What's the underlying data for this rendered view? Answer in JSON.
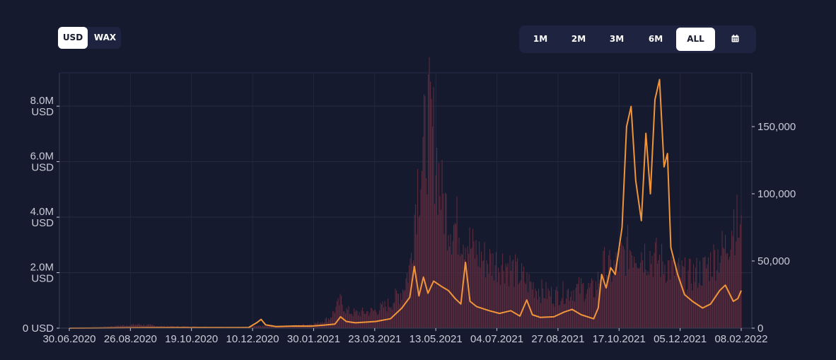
{
  "currency_toggle": {
    "options": [
      {
        "label": "USD",
        "active": true
      },
      {
        "label": "WAX",
        "active": false
      }
    ]
  },
  "range_buttons": [
    {
      "label": "1M",
      "active": false
    },
    {
      "label": "2M",
      "active": false
    },
    {
      "label": "3M",
      "active": false
    },
    {
      "label": "6M",
      "active": false
    },
    {
      "label": "ALL",
      "active": true
    },
    {
      "label": "",
      "icon": "calendar-icon",
      "active": false
    }
  ],
  "colors": {
    "background": "#161a2e",
    "panel": "#1e2340",
    "line": "#f0953a",
    "bars": "#5a2b3d",
    "text": "#c9cbd6"
  },
  "chart_data": {
    "type": "bar",
    "x_tick_labels": [
      "30.06.2020",
      "26.08.2020",
      "19.10.2020",
      "10.12.2020",
      "30.01.2021",
      "23.03.2021",
      "13.05.2021",
      "04.07.2021",
      "27.08.2021",
      "17.10.2021",
      "05.12.2021",
      "08.02.2022"
    ],
    "y_left_ticks": [
      "0 USD",
      "2.0M USD",
      "4.0M USD",
      "6.0M USD",
      "8.0M USD"
    ],
    "y_right_ticks": [
      "0",
      "50,000",
      "100,000",
      "150,000"
    ],
    "y_left_range": [
      0,
      9200000
    ],
    "y_right_range": [
      0,
      190000
    ],
    "x_range": [
      "2020-06-26",
      "2022-02-08"
    ],
    "series": [
      {
        "type": "bar",
        "axis": "left",
        "color": "#5a2b3d",
        "points": [
          [
            "2020-06-26",
            20000
          ],
          [
            "2020-07-20",
            30000
          ],
          [
            "2020-08-10",
            100000
          ],
          [
            "2020-08-26",
            150000
          ],
          [
            "2020-09-15",
            80000
          ],
          [
            "2020-10-19",
            60000
          ],
          [
            "2020-11-15",
            40000
          ],
          [
            "2020-12-01",
            60000
          ],
          [
            "2020-12-10",
            90000
          ],
          [
            "2020-12-25",
            70000
          ],
          [
            "2021-01-15",
            120000
          ],
          [
            "2021-01-30",
            200000
          ],
          [
            "2021-02-10",
            400000
          ],
          [
            "2021-02-20",
            1100000
          ],
          [
            "2021-02-25",
            700000
          ],
          [
            "2021-03-05",
            600000
          ],
          [
            "2021-03-15",
            650000
          ],
          [
            "2021-03-23",
            700000
          ],
          [
            "2021-04-05",
            1000000
          ],
          [
            "2021-04-15",
            1500000
          ],
          [
            "2021-04-22",
            2500000
          ],
          [
            "2021-04-28",
            5800000
          ],
          [
            "2021-05-02",
            6500000
          ],
          [
            "2021-05-08",
            8300000
          ],
          [
            "2021-05-13",
            7500000
          ],
          [
            "2021-05-20",
            5200000
          ],
          [
            "2021-05-28",
            4200000
          ],
          [
            "2021-06-05",
            4000000
          ],
          [
            "2021-06-15",
            3200000
          ],
          [
            "2021-06-25",
            2800000
          ],
          [
            "2021-07-04",
            2600000
          ],
          [
            "2021-07-15",
            2600000
          ],
          [
            "2021-07-25",
            2200000
          ],
          [
            "2021-08-05",
            1800000
          ],
          [
            "2021-08-15",
            1500000
          ],
          [
            "2021-08-27",
            1300000
          ],
          [
            "2021-09-10",
            1500000
          ],
          [
            "2021-09-20",
            1600000
          ],
          [
            "2021-10-01",
            1500000
          ],
          [
            "2021-10-10",
            2500000
          ],
          [
            "2021-10-17",
            2300000
          ],
          [
            "2021-10-25",
            2800000
          ],
          [
            "2021-11-01",
            3200000
          ],
          [
            "2021-11-10",
            3100000
          ],
          [
            "2021-11-20",
            2900000
          ],
          [
            "2021-11-28",
            2700000
          ],
          [
            "2021-12-05",
            2500000
          ],
          [
            "2021-12-15",
            2200000
          ],
          [
            "2021-12-25",
            2100000
          ],
          [
            "2022-01-05",
            2300000
          ],
          [
            "2022-01-15",
            2800000
          ],
          [
            "2022-01-25",
            3200000
          ],
          [
            "2022-02-01",
            4500000
          ],
          [
            "2022-02-08",
            3600000
          ]
        ]
      },
      {
        "type": "line",
        "axis": "right",
        "color": "#f0953a",
        "points": [
          [
            "2020-06-26",
            0
          ],
          [
            "2020-09-01",
            300
          ],
          [
            "2020-12-01",
            500
          ],
          [
            "2020-12-08",
            4000
          ],
          [
            "2020-12-12",
            6500
          ],
          [
            "2020-12-16",
            2500
          ],
          [
            "2020-12-25",
            1200
          ],
          [
            "2021-01-10",
            1600
          ],
          [
            "2021-01-25",
            1500
          ],
          [
            "2021-02-05",
            2200
          ],
          [
            "2021-02-15",
            3000
          ],
          [
            "2021-02-20",
            8500
          ],
          [
            "2021-02-25",
            5000
          ],
          [
            "2021-03-05",
            4000
          ],
          [
            "2021-03-15",
            4500
          ],
          [
            "2021-03-23",
            5000
          ],
          [
            "2021-04-05",
            7000
          ],
          [
            "2021-04-15",
            15000
          ],
          [
            "2021-04-22",
            23000
          ],
          [
            "2021-04-26",
            46000
          ],
          [
            "2021-04-30",
            24000
          ],
          [
            "2021-05-04",
            38000
          ],
          [
            "2021-05-08",
            26000
          ],
          [
            "2021-05-13",
            35000
          ],
          [
            "2021-05-20",
            31000
          ],
          [
            "2021-05-26",
            28000
          ],
          [
            "2021-06-01",
            22000
          ],
          [
            "2021-06-06",
            18000
          ],
          [
            "2021-06-10",
            49000
          ],
          [
            "2021-06-14",
            20000
          ],
          [
            "2021-06-20",
            16000
          ],
          [
            "2021-07-01",
            13000
          ],
          [
            "2021-07-10",
            11000
          ],
          [
            "2021-07-20",
            13000
          ],
          [
            "2021-07-28",
            9000
          ],
          [
            "2021-08-03",
            21000
          ],
          [
            "2021-08-08",
            10000
          ],
          [
            "2021-08-15",
            8000
          ],
          [
            "2021-08-27",
            8500
          ],
          [
            "2021-09-05",
            12000
          ],
          [
            "2021-09-12",
            14000
          ],
          [
            "2021-09-20",
            10000
          ],
          [
            "2021-10-01",
            7000
          ],
          [
            "2021-10-05",
            15000
          ],
          [
            "2021-10-08",
            40000
          ],
          [
            "2021-10-12",
            30000
          ],
          [
            "2021-10-16",
            45000
          ],
          [
            "2021-10-20",
            40000
          ],
          [
            "2021-10-26",
            75000
          ],
          [
            "2021-10-30",
            150000
          ],
          [
            "2021-11-03",
            165000
          ],
          [
            "2021-11-07",
            110000
          ],
          [
            "2021-11-12",
            80000
          ],
          [
            "2021-11-16",
            145000
          ],
          [
            "2021-11-20",
            100000
          ],
          [
            "2021-11-24",
            170000
          ],
          [
            "2021-11-28",
            185000
          ],
          [
            "2021-12-02",
            120000
          ],
          [
            "2021-12-05",
            130000
          ],
          [
            "2021-12-08",
            60000
          ],
          [
            "2021-12-14",
            40000
          ],
          [
            "2021-12-20",
            25000
          ],
          [
            "2021-12-27",
            20000
          ],
          [
            "2022-01-05",
            15000
          ],
          [
            "2022-01-12",
            18000
          ],
          [
            "2022-01-20",
            28000
          ],
          [
            "2022-01-25",
            32000
          ],
          [
            "2022-02-01",
            20000
          ],
          [
            "2022-02-05",
            22000
          ],
          [
            "2022-02-08",
            28000
          ]
        ]
      }
    ],
    "grid": true
  }
}
